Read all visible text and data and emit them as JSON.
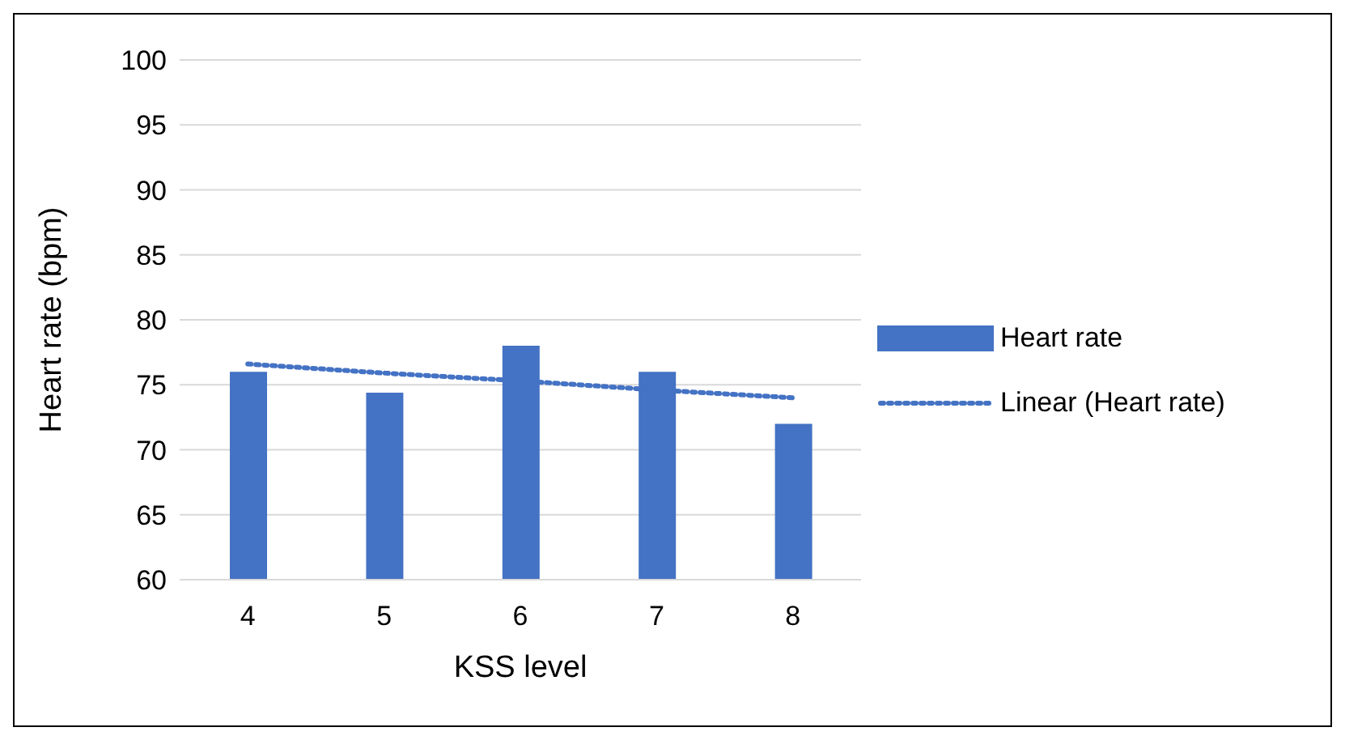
{
  "chart_data": {
    "type": "bar",
    "xlabel": "KSS level",
    "ylabel": "Heart rate (bpm)",
    "categories": [
      "4",
      "5",
      "6",
      "7",
      "8"
    ],
    "series": [
      {
        "name": "Heart rate",
        "color": "#4472c4",
        "values": [
          76,
          74.4,
          78,
          76,
          72
        ]
      },
      {
        "name": "Linear (Heart rate)",
        "type": "line",
        "color": "#4472c4",
        "line_style": "dotted",
        "marker": "none",
        "values": [
          76.6,
          75.9,
          75.3,
          74.6,
          74.0
        ]
      }
    ],
    "ylim": [
      60,
      100
    ],
    "yticks": [
      60,
      65,
      70,
      75,
      80,
      85,
      90,
      95,
      100
    ],
    "grid": "y",
    "legend": "right"
  }
}
